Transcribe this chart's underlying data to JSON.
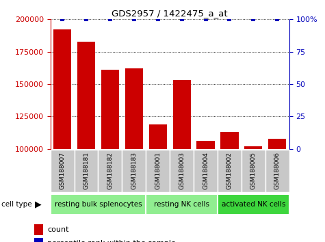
{
  "title": "GDS2957 / 1422475_a_at",
  "samples": [
    "GSM188007",
    "GSM188181",
    "GSM188182",
    "GSM188183",
    "GSM188001",
    "GSM188003",
    "GSM188004",
    "GSM188002",
    "GSM188005",
    "GSM188006"
  ],
  "counts": [
    192000,
    183000,
    161000,
    162000,
    119000,
    153000,
    106000,
    113000,
    102000,
    108000
  ],
  "percentile_vals": [
    100,
    100,
    100,
    100,
    100,
    100,
    100,
    100,
    100,
    100
  ],
  "group_configs": [
    {
      "label": "resting bulk splenocytes",
      "start": 0,
      "end": 4,
      "color": "#90EE90"
    },
    {
      "label": "resting NK cells",
      "start": 4,
      "end": 7,
      "color": "#90EE90"
    },
    {
      "label": "activated NK cells",
      "start": 7,
      "end": 10,
      "color": "#3DD63D"
    }
  ],
  "bar_color": "#CC0000",
  "dot_color": "#0000BB",
  "ylim_left": [
    100000,
    200000
  ],
  "ylim_right": [
    0,
    100
  ],
  "yticks_left": [
    100000,
    125000,
    150000,
    175000,
    200000
  ],
  "yticks_right": [
    0,
    25,
    50,
    75,
    100
  ],
  "grid_lines": [
    125000,
    150000,
    175000,
    200000
  ],
  "tick_label_color_left": "#CC0000",
  "tick_label_color_right": "#0000BB",
  "sample_bg_color": "#C8C8C8",
  "legend_count_color": "#CC0000",
  "legend_pct_color": "#0000BB",
  "cell_type_label_color": "#000000"
}
